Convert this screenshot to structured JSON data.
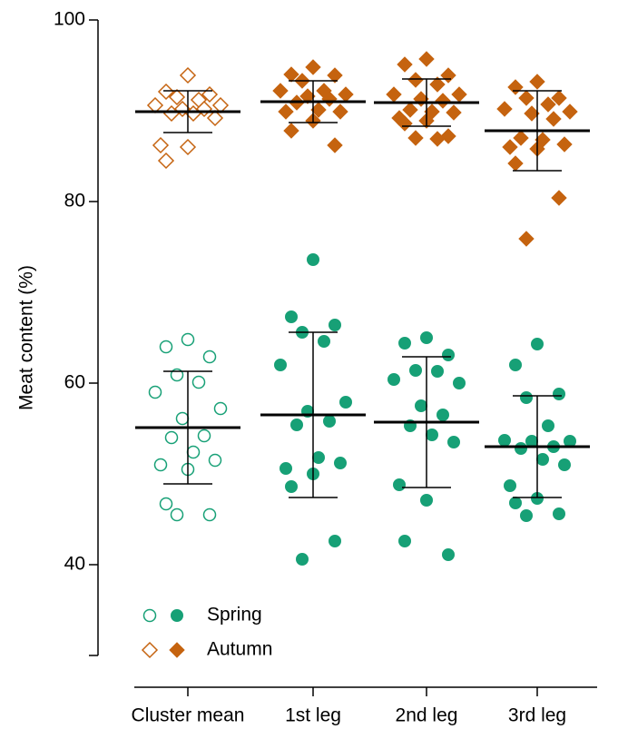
{
  "chart_data": {
    "type": "dot",
    "y_label": "Meat content (%)",
    "categories": [
      "Cluster mean",
      "1st leg",
      "2nd leg",
      "3rd leg"
    ],
    "hollow_categories": [
      0
    ],
    "ylim": [
      30,
      100
    ],
    "yticks": [
      40,
      60,
      80,
      100
    ],
    "series": [
      {
        "name": "Spring",
        "color": "#17a076",
        "marker": "circle",
        "values": [
          [
            64.8,
            64.0,
            62.9,
            60.9,
            60.1,
            59.0,
            57.2,
            56.1,
            54.2,
            54.0,
            52.4,
            51.5,
            51.0,
            50.5,
            46.7,
            45.5,
            45.5
          ],
          [
            73.6,
            67.3,
            66.4,
            65.6,
            64.6,
            62.0,
            57.9,
            56.9,
            55.8,
            55.4,
            51.8,
            51.2,
            50.6,
            50.0,
            48.6,
            42.6,
            40.6
          ],
          [
            65.0,
            64.4,
            63.1,
            61.4,
            61.3,
            60.4,
            60.0,
            57.5,
            56.5,
            55.3,
            54.3,
            53.5,
            48.8,
            47.1,
            42.6,
            41.1
          ],
          [
            64.3,
            62.0,
            58.8,
            58.4,
            55.3,
            53.7,
            53.6,
            53.6,
            53.0,
            52.8,
            51.6,
            51.0,
            48.7,
            47.3,
            46.8,
            45.6,
            45.4
          ]
        ],
        "mean": [
          55.1,
          56.5,
          55.7,
          53.0
        ],
        "sd": [
          6.2,
          9.1,
          7.2,
          5.6
        ]
      },
      {
        "name": "Autumn",
        "color": "#c5630f",
        "marker": "diamond",
        "values": [
          [
            93.9,
            92.1,
            91.8,
            91.5,
            91.2,
            90.6,
            90.6,
            90.2,
            90.2,
            89.7,
            89.7,
            89.2,
            86.2,
            86.0,
            84.5
          ],
          [
            94.8,
            94.0,
            93.9,
            93.3,
            92.2,
            92.2,
            91.8,
            91.6,
            91.3,
            90.9,
            90.1,
            89.9,
            89.9,
            88.9,
            87.8,
            86.2
          ],
          [
            95.7,
            95.1,
            93.9,
            93.4,
            92.9,
            91.8,
            91.8,
            91.3,
            91.1,
            90.1,
            89.9,
            89.8,
            89.2,
            88.9,
            88.6,
            87.2,
            87.0,
            86.9
          ],
          [
            93.2,
            92.6,
            91.4,
            91.4,
            90.7,
            90.2,
            89.9,
            89.7,
            89.1,
            87.0,
            86.8,
            86.3,
            86.0,
            85.8,
            84.2,
            80.4,
            75.9
          ]
        ],
        "mean": [
          89.9,
          91.0,
          90.9,
          87.8
        ],
        "sd": [
          2.3,
          2.3,
          2.6,
          4.4
        ]
      }
    ]
  }
}
